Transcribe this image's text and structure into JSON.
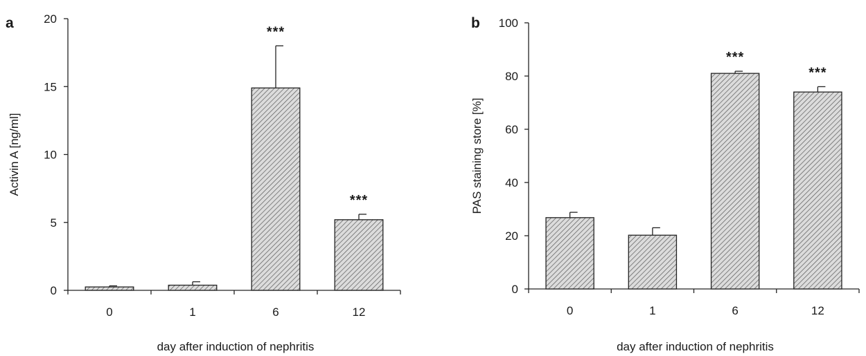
{
  "chart_data": [
    {
      "panel": "a",
      "type": "bar",
      "categories": [
        "0",
        "1",
        "6",
        "12"
      ],
      "values": [
        0.25,
        0.38,
        14.9,
        5.2
      ],
      "errors": [
        0.08,
        0.25,
        3.1,
        0.4
      ],
      "significance": [
        "",
        "",
        "***",
        "***"
      ],
      "xlabel": "day after induction of nephritis",
      "ylabel": "Activin A [ng/ml]",
      "ylim": [
        0,
        20
      ],
      "yticks": [
        0,
        5,
        10,
        15,
        20
      ],
      "grid": false
    },
    {
      "panel": "b",
      "type": "bar",
      "categories": [
        "0",
        "1",
        "6",
        "12"
      ],
      "values": [
        26.8,
        20.2,
        81.0,
        74.0
      ],
      "errors": [
        2.0,
        2.8,
        0.8,
        2.0
      ],
      "significance": [
        "",
        "",
        "***",
        "***"
      ],
      "xlabel": "day after induction of nephritis",
      "ylabel": "PAS staining store [%]",
      "ylim": [
        0,
        100
      ],
      "yticks": [
        0,
        20,
        40,
        60,
        80,
        100
      ],
      "grid": false
    }
  ],
  "colors": {
    "bar_fill": "#dcdcdc",
    "hatch": "#5a5a5a",
    "axis": "#222222"
  }
}
